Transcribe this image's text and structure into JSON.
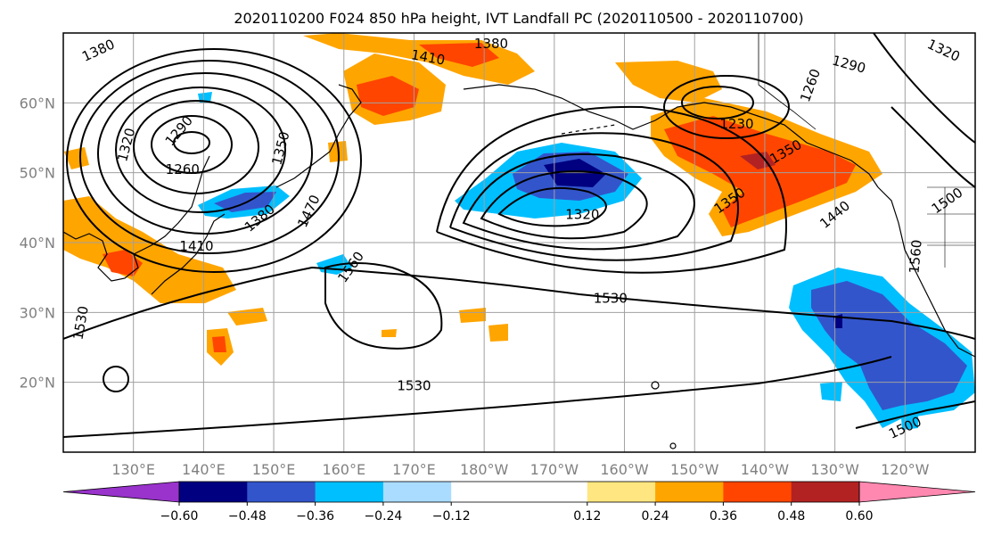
{
  "title": "2020110200 F024 850 hPa height, IVT Landfall PC (2020110500 - 2020110700)",
  "colors": {
    "frame": "#000000",
    "grid": "#a0a0a0",
    "tick_label": "#808080",
    "contour": "#000000",
    "land": "#000000"
  },
  "map": {
    "projection": "plate-carree",
    "lon_range": [
      120,
      250
    ],
    "lat_range": [
      10,
      70
    ],
    "lon_grid": [
      130,
      140,
      150,
      160,
      170,
      180,
      190,
      200,
      210,
      220,
      230,
      240
    ],
    "lat_grid": [
      20,
      30,
      40,
      50,
      60
    ],
    "lon_labels": [
      "130°E",
      "140°E",
      "150°E",
      "160°E",
      "170°E",
      "180°W",
      "170°W",
      "160°W",
      "150°W",
      "140°W",
      "130°W",
      "120°W"
    ],
    "lat_labels": [
      "20°N",
      "30°N",
      "40°N",
      "50°N",
      "60°N"
    ],
    "grid": true
  },
  "height_contour_labels": [
    {
      "text": "1380",
      "lon": 125,
      "lat": 67.5,
      "angle": -25
    },
    {
      "text": "1410",
      "lon": 172,
      "lat": 66.5,
      "angle": 10
    },
    {
      "text": "1380",
      "lon": 181,
      "lat": 68.5,
      "angle": 0
    },
    {
      "text": "1320",
      "lon": 245.5,
      "lat": 67.5,
      "angle": 25
    },
    {
      "text": "1290",
      "lon": 232,
      "lat": 65.5,
      "angle": 15
    },
    {
      "text": "1290",
      "lon": 136.5,
      "lat": 56,
      "angle": -50
    },
    {
      "text": "1320",
      "lon": 129,
      "lat": 54,
      "angle": -75
    },
    {
      "text": "1260",
      "lon": 137,
      "lat": 50.5,
      "angle": 0
    },
    {
      "text": "1350",
      "lon": 151,
      "lat": 53.5,
      "angle": -75
    },
    {
      "text": "1380",
      "lon": 148,
      "lat": 43.5,
      "angle": -40
    },
    {
      "text": "1410",
      "lon": 139,
      "lat": 39.5,
      "angle": 0
    },
    {
      "text": "1470",
      "lon": 155,
      "lat": 44.5,
      "angle": -65
    },
    {
      "text": "1560",
      "lon": 161,
      "lat": 36.5,
      "angle": -55
    },
    {
      "text": "1320",
      "lon": 194,
      "lat": 44,
      "angle": 0
    },
    {
      "text": "1230",
      "lon": 216,
      "lat": 57,
      "angle": 0
    },
    {
      "text": "1260",
      "lon": 226.5,
      "lat": 62.5,
      "angle": -70
    },
    {
      "text": "1350",
      "lon": 215,
      "lat": 46,
      "angle": -35
    },
    {
      "text": "1350",
      "lon": 223,
      "lat": 53,
      "angle": -30
    },
    {
      "text": "1440",
      "lon": 230,
      "lat": 44,
      "angle": -40
    },
    {
      "text": "1500",
      "lon": 246,
      "lat": 46,
      "angle": -35
    },
    {
      "text": "1560",
      "lon": 241.5,
      "lat": 38,
      "angle": -85
    },
    {
      "text": "1530",
      "lon": 122.5,
      "lat": 28.5,
      "angle": -80
    },
    {
      "text": "1530",
      "lon": 198,
      "lat": 32,
      "angle": 0
    },
    {
      "text": "1530",
      "lon": 170,
      "lat": 19.5,
      "angle": 0
    },
    {
      "text": "1500",
      "lon": 240,
      "lat": 13.5,
      "angle": -25
    }
  ],
  "colorbar": {
    "ticks": [
      "−0.60",
      "−0.48",
      "−0.36",
      "−0.24",
      "−0.12",
      "0.12",
      "0.24",
      "0.36",
      "0.48",
      "0.60"
    ],
    "under_color": "#9933cc",
    "over_color": "#ff88b0",
    "bins": [
      "#000080",
      "#3355cc",
      "#00bfff",
      "#aadcff",
      "#ffffff",
      "#ffffff",
      "#ffe680",
      "#ffa500",
      "#ff4500",
      "#b22222"
    ]
  }
}
